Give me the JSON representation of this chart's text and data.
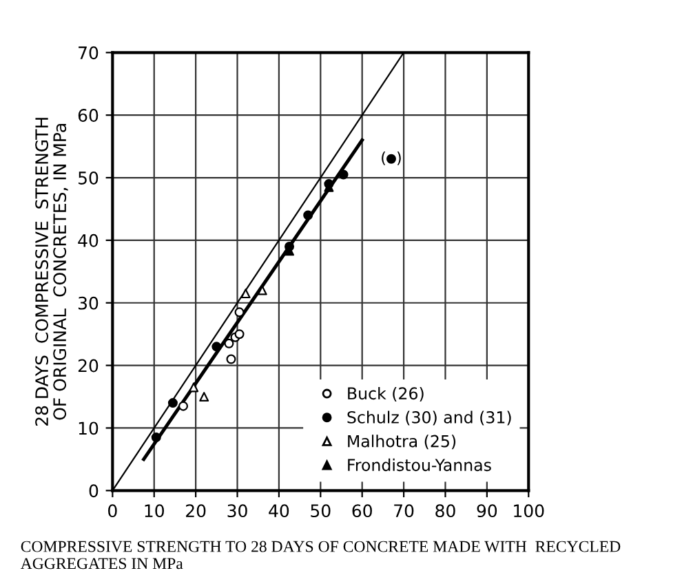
{
  "chart_data": {
    "type": "scatter",
    "xlabel": "COMPRESSIVE STRENGTH TO 28 DAYS OF CONCRETE MADE WITH  RECYCLED AGGREGATES IN MPa",
    "ylabel": "28 DAYS  COMPRESSIVE  STRENGTH\nOF ORIGINAL  CONCRETES, IN MPa",
    "series": [
      {
        "name": "Buck (26)",
        "color": "#ffffff",
        "marker": "circle",
        "x": [
          17,
          28.5,
          28,
          29.5,
          30.5,
          30.5
        ],
        "values": [
          13.5,
          21,
          23.5,
          24.5,
          25,
          28.5
        ]
      },
      {
        "name": "Schulz (30) and (31)",
        "color": "#000000",
        "marker": "circle",
        "x": [
          10.5,
          14.5,
          25,
          42.5,
          47,
          52,
          55.5,
          67
        ],
        "values": [
          8.5,
          14,
          23,
          39,
          44,
          49,
          50.5,
          53
        ]
      },
      {
        "name": "Malhotra (25)",
        "color": "#ffffff",
        "marker": "triangle",
        "x": [
          19.5,
          22,
          32,
          36
        ],
        "values": [
          16.5,
          15,
          31.5,
          32
        ]
      },
      {
        "name": "Frondistou-Yannas",
        "color": "#000000",
        "marker": "triangle",
        "x": [
          42.5,
          52
        ],
        "values": [
          38.3,
          48.5
        ]
      },
      {
        "type": "line",
        "color": "#000000",
        "line_style": "solid",
        "x": [
          0,
          70
        ],
        "values": [
          0,
          70
        ]
      },
      {
        "type": "line",
        "color": "#000000",
        "line_style": "solid",
        "x": [
          7.5,
          60
        ],
        "values": [
          5,
          56
        ]
      }
    ],
    "annotations": [
      {
        "text": "(  )",
        "x": 67,
        "y": 53
      }
    ],
    "xlim": [
      0,
      100
    ],
    "ylim": [
      0,
      70
    ],
    "xticks": [
      0,
      10,
      20,
      30,
      40,
      50,
      60,
      70,
      80,
      90,
      100
    ],
    "yticks": [
      0,
      10,
      20,
      30,
      40,
      50,
      60,
      70
    ],
    "grid": true,
    "legend": "bottom right"
  }
}
